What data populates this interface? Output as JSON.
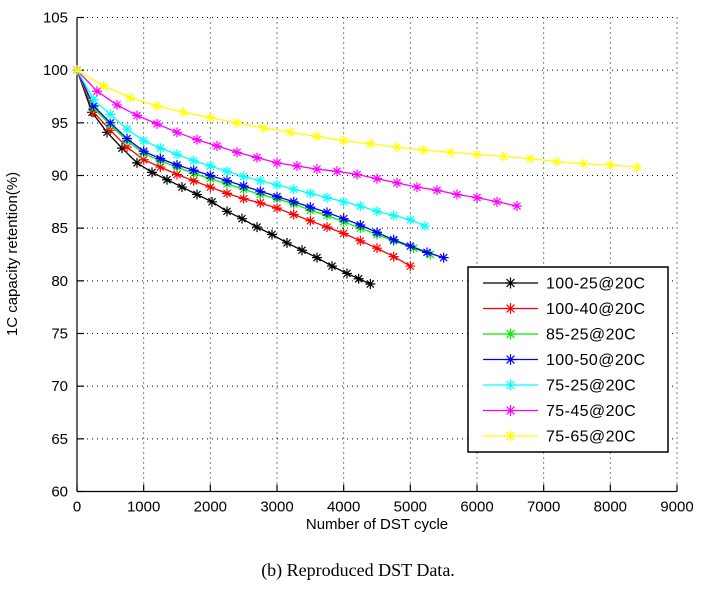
{
  "figure": {
    "background": "#ffffff",
    "caption": "(b) Reproduced DST Data."
  },
  "chart_data": {
    "type": "line",
    "title": "",
    "xlabel": "Number of DST cycle",
    "ylabel": "1C capacity retention(%)",
    "xlim": [
      0,
      9000
    ],
    "ylim": [
      60,
      105
    ],
    "xticks": [
      0,
      1000,
      2000,
      3000,
      4000,
      5000,
      6000,
      7000,
      8000,
      9000
    ],
    "yticks": [
      60,
      65,
      70,
      75,
      80,
      85,
      90,
      95,
      100,
      105
    ],
    "grid": "dotted black at every major tick",
    "axes_style": "solid left and bottom axis lines only, inward tick marks",
    "marker": "asterisk",
    "legend_position": "inside lower right",
    "series": [
      {
        "name": "100-25@20C",
        "color": "#000000",
        "points": [
          [
            0,
            100
          ],
          [
            225,
            96.0
          ],
          [
            450,
            94.1
          ],
          [
            675,
            92.6
          ],
          [
            900,
            91.2
          ],
          [
            1125,
            90.3
          ],
          [
            1350,
            89.6
          ],
          [
            1575,
            88.9
          ],
          [
            1800,
            88.2
          ],
          [
            2025,
            87.5
          ],
          [
            2250,
            86.6
          ],
          [
            2475,
            85.9
          ],
          [
            2700,
            85.1
          ],
          [
            2925,
            84.4
          ],
          [
            3150,
            83.6
          ],
          [
            3375,
            82.9
          ],
          [
            3600,
            82.2
          ],
          [
            3825,
            81.4
          ],
          [
            4050,
            80.7
          ],
          [
            4225,
            80.2
          ],
          [
            4400,
            79.7
          ]
        ]
      },
      {
        "name": "100-40@20C",
        "color": "#ff0000",
        "points": [
          [
            0,
            100
          ],
          [
            250,
            96.0
          ],
          [
            500,
            94.3
          ],
          [
            750,
            92.7
          ],
          [
            1000,
            91.5
          ],
          [
            1250,
            90.8
          ],
          [
            1500,
            90.1
          ],
          [
            1750,
            89.5
          ],
          [
            2000,
            88.9
          ],
          [
            2250,
            88.3
          ],
          [
            2500,
            87.8
          ],
          [
            2750,
            87.4
          ],
          [
            3000,
            86.9
          ],
          [
            3250,
            86.3
          ],
          [
            3500,
            85.7
          ],
          [
            3750,
            85.1
          ],
          [
            4000,
            84.5
          ],
          [
            4250,
            83.8
          ],
          [
            4500,
            83.1
          ],
          [
            4750,
            82.3
          ],
          [
            5000,
            81.4
          ]
        ]
      },
      {
        "name": "85-25@20C",
        "color": "#00ee00",
        "points": [
          [
            0,
            100
          ],
          [
            250,
            96.4
          ],
          [
            500,
            94.8
          ],
          [
            750,
            93.3
          ],
          [
            1000,
            92.1
          ],
          [
            1250,
            91.4
          ],
          [
            1500,
            90.8
          ],
          [
            1750,
            90.2
          ],
          [
            2000,
            89.7
          ],
          [
            2250,
            89.2
          ],
          [
            2500,
            88.7
          ],
          [
            2750,
            88.2
          ],
          [
            3000,
            87.8
          ],
          [
            3250,
            87.3
          ],
          [
            3500,
            86.7
          ],
          [
            3750,
            86.2
          ],
          [
            4000,
            85.6
          ],
          [
            4250,
            85.0
          ],
          [
            4500,
            84.4
          ],
          [
            4750,
            83.8
          ],
          [
            5050,
            83.1
          ],
          [
            5300,
            82.5
          ]
        ]
      },
      {
        "name": "100-50@20C",
        "color": "#0000ff",
        "points": [
          [
            0,
            100
          ],
          [
            250,
            96.6
          ],
          [
            500,
            95.0
          ],
          [
            750,
            93.5
          ],
          [
            1000,
            92.3
          ],
          [
            1250,
            91.6
          ],
          [
            1500,
            91.0
          ],
          [
            1750,
            90.5
          ],
          [
            2000,
            90.0
          ],
          [
            2250,
            89.5
          ],
          [
            2500,
            89.0
          ],
          [
            2750,
            88.5
          ],
          [
            3000,
            88.0
          ],
          [
            3250,
            87.5
          ],
          [
            3500,
            87.0
          ],
          [
            3750,
            86.5
          ],
          [
            4000,
            85.9
          ],
          [
            4250,
            85.3
          ],
          [
            4500,
            84.6
          ],
          [
            4750,
            83.9
          ],
          [
            5000,
            83.3
          ],
          [
            5250,
            82.7
          ],
          [
            5500,
            82.2
          ]
        ]
      },
      {
        "name": "75-25@20C",
        "color": "#00ffff",
        "points": [
          [
            0,
            100
          ],
          [
            250,
            97.2
          ],
          [
            500,
            95.8
          ],
          [
            750,
            94.4
          ],
          [
            1000,
            93.3
          ],
          [
            1250,
            92.6
          ],
          [
            1500,
            92.0
          ],
          [
            1750,
            91.4
          ],
          [
            2000,
            90.9
          ],
          [
            2250,
            90.4
          ],
          [
            2500,
            89.9
          ],
          [
            2750,
            89.5
          ],
          [
            3000,
            89.1
          ],
          [
            3250,
            88.7
          ],
          [
            3500,
            88.3
          ],
          [
            3750,
            87.9
          ],
          [
            4000,
            87.5
          ],
          [
            4250,
            87.1
          ],
          [
            4500,
            86.6
          ],
          [
            4750,
            86.2
          ],
          [
            5000,
            85.8
          ],
          [
            5220,
            85.2
          ]
        ]
      },
      {
        "name": "75-45@20C",
        "color": "#ff00ff",
        "points": [
          [
            0,
            100
          ],
          [
            300,
            98.0
          ],
          [
            600,
            96.7
          ],
          [
            900,
            95.7
          ],
          [
            1200,
            94.9
          ],
          [
            1500,
            94.1
          ],
          [
            1800,
            93.4
          ],
          [
            2100,
            92.8
          ],
          [
            2400,
            92.2
          ],
          [
            2700,
            91.7
          ],
          [
            3000,
            91.2
          ],
          [
            3300,
            90.9
          ],
          [
            3600,
            90.6
          ],
          [
            3900,
            90.4
          ],
          [
            4200,
            90.1
          ],
          [
            4500,
            89.7
          ],
          [
            4800,
            89.3
          ],
          [
            5100,
            88.9
          ],
          [
            5400,
            88.6
          ],
          [
            5700,
            88.2
          ],
          [
            6000,
            87.9
          ],
          [
            6300,
            87.5
          ],
          [
            6600,
            87.1
          ]
        ]
      },
      {
        "name": "75-65@20C",
        "color": "#ffff00",
        "points": [
          [
            0,
            100
          ],
          [
            400,
            98.5
          ],
          [
            800,
            97.4
          ],
          [
            1200,
            96.6
          ],
          [
            1600,
            96.0
          ],
          [
            2000,
            95.5
          ],
          [
            2400,
            95.0
          ],
          [
            2800,
            94.5
          ],
          [
            3200,
            94.1
          ],
          [
            3600,
            93.7
          ],
          [
            4000,
            93.3
          ],
          [
            4400,
            93.0
          ],
          [
            4800,
            92.7
          ],
          [
            5200,
            92.4
          ],
          [
            5600,
            92.2
          ],
          [
            6000,
            92.0
          ],
          [
            6400,
            91.8
          ],
          [
            6800,
            91.6
          ],
          [
            7200,
            91.3
          ],
          [
            7600,
            91.1
          ],
          [
            8000,
            91.0
          ],
          [
            8400,
            90.8
          ]
        ]
      }
    ]
  }
}
